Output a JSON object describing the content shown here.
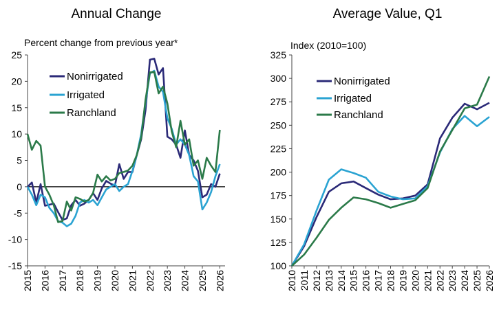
{
  "chart_data": [
    {
      "type": "line",
      "title": "Annual Change",
      "subtitle": "Percent change from previous year*",
      "ylim": [
        -15,
        25
      ],
      "yticks": [
        "25",
        "20",
        "15",
        "10",
        "5",
        "0",
        "-5",
        "-10",
        "-15"
      ],
      "xlim": [
        2015,
        2026.3
      ],
      "xticks": [
        "2015",
        "2016",
        "2017",
        "2018",
        "2019",
        "2020",
        "2021",
        "2022",
        "2023",
        "2024",
        "2025",
        "2026"
      ],
      "legend_placement": "top-left",
      "series": [
        {
          "name": "Nonirrigated",
          "color": "#2b2a78",
          "points": [
            [
              2015,
              0
            ],
            [
              2015.25,
              0.8
            ],
            [
              2015.5,
              -3
            ],
            [
              2015.75,
              0.5
            ],
            [
              2016,
              -3.6
            ],
            [
              2016.25,
              -3.4
            ],
            [
              2016.5,
              -3.2
            ],
            [
              2016.75,
              -4.8
            ],
            [
              2017,
              -6.3
            ],
            [
              2017.25,
              -6
            ],
            [
              2017.5,
              -3.5
            ],
            [
              2017.75,
              -2.5
            ],
            [
              2018,
              -3.6
            ],
            [
              2018.25,
              -3.2
            ],
            [
              2018.5,
              -2.5
            ],
            [
              2018.75,
              -1.2
            ],
            [
              2019,
              -2.5
            ],
            [
              2019.25,
              -0.3
            ],
            [
              2019.5,
              1.1
            ],
            [
              2019.75,
              0.6
            ],
            [
              2020,
              0.2
            ],
            [
              2020.25,
              4.3
            ],
            [
              2020.5,
              1.5
            ],
            [
              2020.75,
              2.8
            ],
            [
              2021,
              2.8
            ],
            [
              2021.25,
              6
            ],
            [
              2021.5,
              9
            ],
            [
              2021.75,
              14.5
            ],
            [
              2022,
              24.1
            ],
            [
              2022.25,
              24.3
            ],
            [
              2022.5,
              21.3
            ],
            [
              2022.75,
              22.5
            ],
            [
              2023,
              9.5
            ],
            [
              2023.25,
              9
            ],
            [
              2023.5,
              8
            ],
            [
              2023.75,
              5.5
            ],
            [
              2024,
              10.7
            ],
            [
              2024.25,
              6
            ],
            [
              2024.5,
              5
            ],
            [
              2024.75,
              3
            ],
            [
              2025,
              -2
            ],
            [
              2025.25,
              -1.5
            ],
            [
              2025.5,
              0.5
            ],
            [
              2025.75,
              0
            ],
            [
              2026,
              2.5
            ]
          ]
        },
        {
          "name": "Irrigated",
          "color": "#2aa3d2",
          "points": [
            [
              2015,
              0
            ],
            [
              2015.25,
              -1.5
            ],
            [
              2015.5,
              -3.5
            ],
            [
              2015.75,
              -1.5
            ],
            [
              2016,
              -2
            ],
            [
              2016.25,
              -4
            ],
            [
              2016.5,
              -5
            ],
            [
              2016.75,
              -6.5
            ],
            [
              2017,
              -6.8
            ],
            [
              2017.25,
              -7.5
            ],
            [
              2017.5,
              -7
            ],
            [
              2017.75,
              -5.5
            ],
            [
              2018,
              -3
            ],
            [
              2018.25,
              -2.5
            ],
            [
              2018.5,
              -3
            ],
            [
              2018.75,
              -2.5
            ],
            [
              2019,
              -3.5
            ],
            [
              2019.25,
              -2
            ],
            [
              2019.5,
              -0.5
            ],
            [
              2019.75,
              0
            ],
            [
              2020,
              0.5
            ],
            [
              2020.25,
              -0.8
            ],
            [
              2020.5,
              0
            ],
            [
              2020.75,
              0.5
            ],
            [
              2021,
              3
            ],
            [
              2021.25,
              6
            ],
            [
              2021.5,
              10
            ],
            [
              2021.75,
              16
            ],
            [
              2022,
              21.5
            ],
            [
              2022.25,
              22
            ],
            [
              2022.5,
              19
            ],
            [
              2022.75,
              18
            ],
            [
              2023,
              13
            ],
            [
              2023.25,
              11
            ],
            [
              2023.5,
              8
            ],
            [
              2023.75,
              9
            ],
            [
              2024,
              8
            ],
            [
              2024.25,
              6
            ],
            [
              2024.5,
              2
            ],
            [
              2024.75,
              1
            ],
            [
              2025,
              -4.3
            ],
            [
              2025.25,
              -3
            ],
            [
              2025.5,
              -1
            ],
            [
              2025.75,
              2
            ],
            [
              2026,
              4.3
            ]
          ]
        },
        {
          "name": "Ranchland",
          "color": "#2b7a49",
          "points": [
            [
              2015,
              10
            ],
            [
              2015.25,
              7
            ],
            [
              2015.5,
              8.7
            ],
            [
              2015.75,
              7.8
            ],
            [
              2016,
              0
            ],
            [
              2016.25,
              -1.5
            ],
            [
              2016.5,
              -3.5
            ],
            [
              2016.75,
              -6.7
            ],
            [
              2017,
              -6.5
            ],
            [
              2017.25,
              -2.8
            ],
            [
              2017.5,
              -4.5
            ],
            [
              2017.75,
              -2
            ],
            [
              2018,
              -2.3
            ],
            [
              2018.25,
              -2.8
            ],
            [
              2018.5,
              -2.5
            ],
            [
              2018.75,
              -1.2
            ],
            [
              2019,
              2.3
            ],
            [
              2019.25,
              1
            ],
            [
              2019.5,
              2
            ],
            [
              2019.75,
              1.2
            ],
            [
              2020,
              1.5
            ],
            [
              2020.25,
              2.6
            ],
            [
              2020.5,
              2.8
            ],
            [
              2020.75,
              3.1
            ],
            [
              2021,
              4
            ],
            [
              2021.25,
              6
            ],
            [
              2021.5,
              9.3
            ],
            [
              2021.75,
              16.5
            ],
            [
              2022,
              21.7
            ],
            [
              2022.25,
              21.8
            ],
            [
              2022.5,
              17.7
            ],
            [
              2022.75,
              19
            ],
            [
              2023,
              15.8
            ],
            [
              2023.25,
              10.5
            ],
            [
              2023.5,
              7.5
            ],
            [
              2023.75,
              12.5
            ],
            [
              2024,
              8
            ],
            [
              2024.25,
              9
            ],
            [
              2024.5,
              4
            ],
            [
              2024.75,
              5
            ],
            [
              2025,
              1.5
            ],
            [
              2025.25,
              5.5
            ],
            [
              2025.5,
              4
            ],
            [
              2025.75,
              2.8
            ],
            [
              2026,
              10.8
            ]
          ]
        }
      ]
    },
    {
      "type": "line",
      "title": "Average Value, Q1",
      "subtitle": "Index (2010=100)",
      "ylim": [
        100,
        325
      ],
      "yticks": [
        "325",
        "300",
        "275",
        "250",
        "225",
        "200",
        "175",
        "150",
        "125",
        "100"
      ],
      "xlim": [
        2010,
        2026
      ],
      "categories": [
        "2010",
        "2011",
        "2012",
        "2013",
        "2014",
        "2015",
        "2016",
        "2017",
        "2018",
        "2019",
        "2020",
        "2021",
        "2022",
        "2023",
        "2024",
        "2025",
        "2026"
      ],
      "legend_placement": "top-left",
      "series": [
        {
          "name": "Nonirrigated",
          "color": "#2b2a78",
          "values": [
            100,
            121,
            152,
            179,
            188,
            190,
            183,
            176,
            171,
            172,
            175,
            187,
            236,
            258,
            273,
            267,
            274
          ]
        },
        {
          "name": "Irrigated",
          "color": "#2aa3d2",
          "values": [
            100,
            123,
            159,
            192,
            203,
            199,
            194,
            179,
            174,
            171,
            172,
            185,
            221,
            246,
            260,
            249,
            259
          ]
        },
        {
          "name": "Ranchland",
          "color": "#2b7a49",
          "values": [
            100,
            112,
            130,
            149,
            162,
            173,
            171,
            167,
            162,
            166,
            170,
            183,
            222,
            245,
            268,
            272,
            302
          ]
        }
      ]
    }
  ]
}
